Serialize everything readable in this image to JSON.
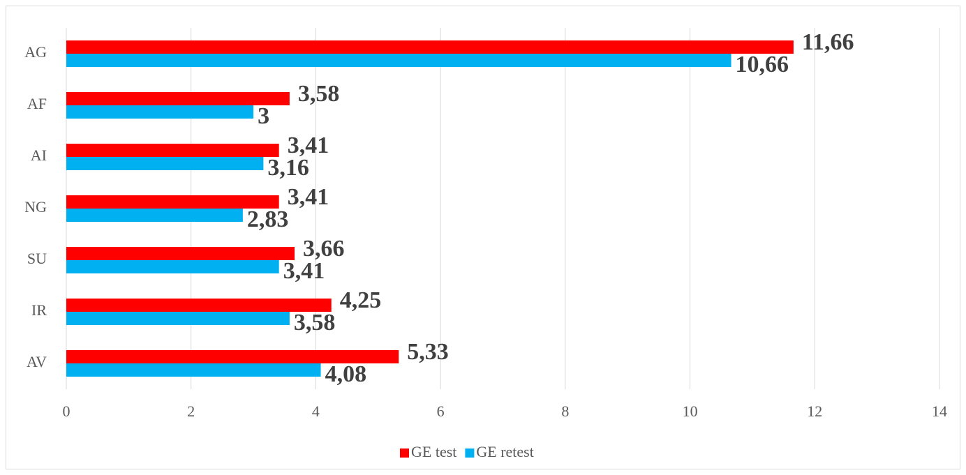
{
  "chart_data": {
    "type": "bar",
    "orientation": "horizontal",
    "categories": [
      "AG",
      "AF",
      "AI",
      "NG",
      "SU",
      "IR",
      "AV"
    ],
    "series": [
      {
        "name": "GE test",
        "color": "#ff0000",
        "values": [
          11.66,
          3.58,
          3.41,
          3.41,
          3.66,
          4.25,
          5.33
        ],
        "value_labels": [
          "11,66",
          "3,58",
          "3,41",
          "3,41",
          "3,66",
          "4,25",
          "5,33"
        ]
      },
      {
        "name": "GE retest",
        "color": "#00b0f0",
        "values": [
          10.66,
          3,
          3.16,
          2.83,
          3.41,
          3.58,
          4.08
        ],
        "value_labels": [
          "10,66",
          "3",
          "3,16",
          "2,83",
          "3,41",
          "3,58",
          "4,08"
        ]
      }
    ],
    "xlim": [
      0,
      14
    ],
    "xticks": [
      0,
      2,
      4,
      6,
      8,
      10,
      12,
      14
    ],
    "grid": true,
    "legend": "bottom"
  }
}
